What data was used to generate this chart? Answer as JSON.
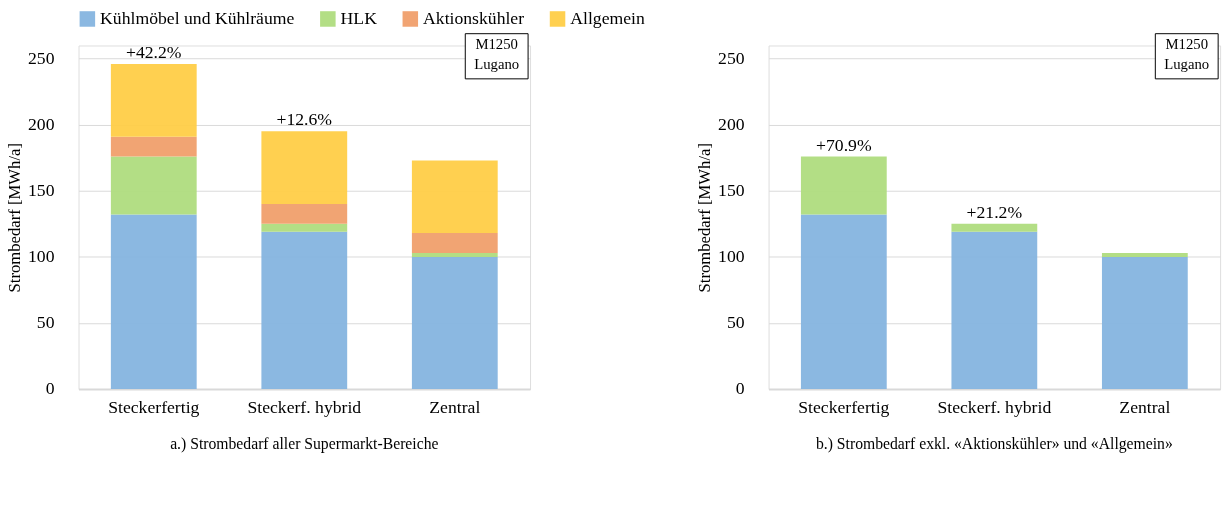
{
  "chart_data": [
    {
      "type": "bar",
      "stacked": true,
      "title": "a.) Strombedarf aller Supermarkt-Bereiche",
      "ylabel": "Strombedarf [MWh/a]",
      "categories": [
        "Steckerfertig",
        "Steckerf. hybrid",
        "Zentral"
      ],
      "series": [
        {
          "name": "Kühlmöbel und Kühlräume",
          "color": "#85b4df",
          "values": [
            132,
            119,
            100
          ]
        },
        {
          "name": "HLK",
          "color": "#afdc7e",
          "values": [
            44,
            6,
            3
          ]
        },
        {
          "name": "Aktionskühler",
          "color": "#f09f6c",
          "values": [
            15,
            15,
            15
          ]
        },
        {
          "name": "Allgemein",
          "color": "#ffcd47",
          "values": [
            55,
            55,
            55
          ]
        }
      ],
      "ylim": [
        0,
        260
      ],
      "yticks": [
        0,
        50,
        100,
        150,
        200,
        250
      ],
      "grid": "y",
      "legend": "top",
      "annotations": [
        {
          "text": "+42.2%",
          "x": "Steckerfertig",
          "y": 246
        },
        {
          "text": "+12.6%",
          "x": "Steckerf. hybrid",
          "y": 195
        },
        "M1250\nLugano"
      ]
    },
    {
      "type": "bar",
      "stacked": true,
      "title": "b.) Strombedarf exkl. «Aktionskühler» und «Allgemein»",
      "ylabel": "Strombedarf [MWh/a]",
      "categories": [
        "Steckerfertig",
        "Steckerf. hybrid",
        "Zentral"
      ],
      "series": [
        {
          "color": "#85b4df",
          "values": [
            132,
            119,
            100
          ]
        },
        {
          "color": "#afdc7e",
          "values": [
            44,
            6,
            3
          ]
        }
      ],
      "ylim": [
        0,
        260
      ],
      "yticks": [
        0,
        50,
        100,
        150,
        200,
        250
      ],
      "grid": "y",
      "legend": false,
      "annotations": [
        {
          "text": "+70.9%",
          "x": "Steckerfertig",
          "y": 176
        },
        {
          "text": "+21.2%",
          "x": "Steckerf. hybrid",
          "y": 125
        },
        "M1250\nLugano"
      ]
    }
  ]
}
